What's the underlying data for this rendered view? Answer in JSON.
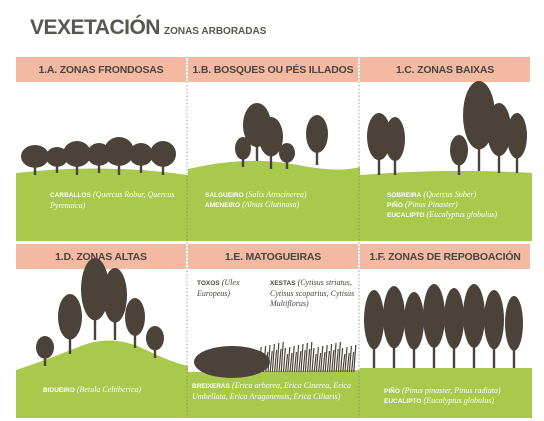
{
  "header": {
    "title": "VEXETACIÓN",
    "subtitle": "ZONAS ARBORADAS"
  },
  "panels": [
    {
      "title": "1.A. ZONAS FRONDOSAS",
      "species": [
        {
          "name": "CARBALLOS",
          "latin": "(Quercus Robur, Quercus Pyrenaica)"
        }
      ]
    },
    {
      "title": "1.B. BOSQUES OU PÉS ILLADOS",
      "species": [
        {
          "name": "SALGUEIRO",
          "latin": "(Salix Atrocinerea)"
        },
        {
          "name": "AMENEIRO",
          "latin": "(Alnus Glutinosa)"
        }
      ]
    },
    {
      "title": "1.C. ZONAS BAIXAS",
      "species": [
        {
          "name": "SOBREIRA",
          "latin": "(Quercus Suber)"
        },
        {
          "name": "PIÑO",
          "latin": "(Pinus Pinaster)"
        },
        {
          "name": "EUCALIPTO",
          "latin": "(Eucalyptus globulus)"
        }
      ]
    },
    {
      "title": "1.D. ZONAS ALTAS",
      "species": [
        {
          "name": "BIDUEIRO",
          "latin": "(Betula Celtiberica)"
        }
      ]
    },
    {
      "title": "1.E. MATOGUEIRAS",
      "species": [
        {
          "name": "TOXOS",
          "latin": "(Ulex Europeus)"
        },
        {
          "name": "XESTAS",
          "latin": "(Cytisus striatus, Cytisus scoparius, Cytisus Multiflorus)"
        },
        {
          "name": "BREIXERAS",
          "latin": "(Erica arborea, Erica Cinerea, Erica Umbellata, Erica Aragonensis, Erica Ciliaris)"
        }
      ]
    },
    {
      "title": "1.F. ZONAS DE REPOBOACIÓN",
      "species": [
        {
          "name": "PIÑO",
          "latin": "(Pinus pinaster, Pinus radiata)"
        },
        {
          "name": "EUCALIPTO",
          "latin": "(Eucalyptus globulus)"
        }
      ]
    }
  ]
}
